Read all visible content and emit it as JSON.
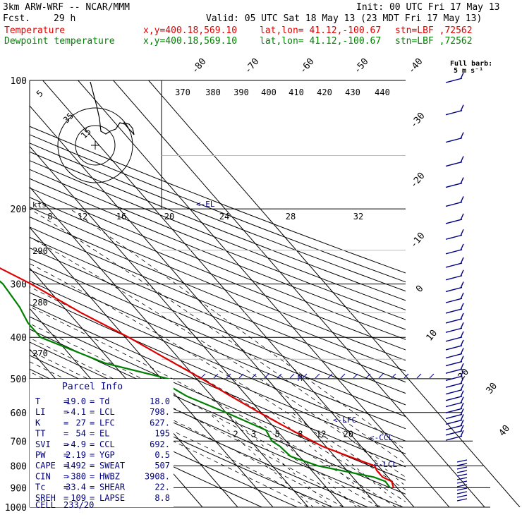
{
  "header": {
    "model": "3km ARW-WRF -- NCAR/MMM",
    "init": "Init: 00 UTC Fri 17 May 13",
    "fcst_label": "Fcst.",
    "fcst_value": "29 h",
    "valid": "Valid: 05 UTC Sat 18 May 13 (23 MDT Fri 17 May 13)",
    "temperature_label": "Temperature",
    "dewpoint_label": "Dewpoint temperature",
    "xy": "x,y=400.18,569.10",
    "latlon": "lat,lon= 41.12,-100.67",
    "station": "stn=LBF ,72562",
    "full_barb_label": "Full barb:",
    "full_barb_value": "5 m s⁻¹"
  },
  "chart_data": {
    "type": "line",
    "diagram": "skew-T log-p",
    "y_axis": {
      "scale": "log",
      "range": [
        1000,
        100
      ],
      "tick_labels": [
        100,
        200,
        300,
        400,
        500,
        600,
        700,
        800,
        900,
        1000
      ]
    },
    "isotherm_labels": [
      -80,
      -70,
      -60,
      -50,
      -40,
      -30,
      -20,
      -10,
      0,
      10,
      20,
      30,
      40
    ],
    "theta_labels_top": [
      370,
      380,
      390,
      400,
      410,
      420,
      430,
      440
    ],
    "theta_labels_left": [
      290,
      280,
      270
    ],
    "mixing_ratio_labels": [
      2,
      3,
      5,
      8,
      12,
      20
    ],
    "hodograph_speed_labels": [
      8,
      12,
      16,
      20,
      24,
      28,
      32
    ],
    "hodograph_unit": "kts",
    "hodograph_ring_labels": [
      5,
      35,
      15
    ],
    "series": [
      {
        "name": "Temperature",
        "color": "#e00000",
        "points": [
          [
            900,
            19.0
          ],
          [
            870,
            20.0
          ],
          [
            850,
            18.5
          ],
          [
            820,
            18.5
          ],
          [
            800,
            19.0
          ],
          [
            760,
            14.0
          ],
          [
            720,
            9.0
          ],
          [
            700,
            7.5
          ],
          [
            650,
            3.5
          ],
          [
            600,
            -0.5
          ],
          [
            550,
            -4.5
          ],
          [
            500,
            -8.5
          ],
          [
            450,
            -13.5
          ],
          [
            400,
            -19.0
          ],
          [
            350,
            -26.5
          ],
          [
            300,
            -33.5
          ],
          [
            250,
            -44.0
          ],
          [
            220,
            -51.5
          ],
          [
            200,
            -56.0
          ],
          [
            180,
            -58.0
          ],
          [
            160,
            -58.0
          ],
          [
            140,
            -57.5
          ],
          [
            130,
            -56.0
          ],
          [
            120,
            -56.0
          ],
          [
            110,
            -58.0
          ],
          [
            100,
            -60.0
          ]
        ]
      },
      {
        "name": "Dewpoint temperature",
        "color": "#008000",
        "points": [
          [
            900,
            18.0
          ],
          [
            870,
            18.2
          ],
          [
            850,
            16.0
          ],
          [
            800,
            3.0
          ],
          [
            760,
            -2.5
          ],
          [
            720,
            -3.0
          ],
          [
            700,
            -4.0
          ],
          [
            660,
            -3.0
          ],
          [
            600,
            -10.0
          ],
          [
            550,
            -17.0
          ],
          [
            520,
            -19.5
          ],
          [
            500,
            -18.0
          ],
          [
            460,
            -32.0
          ],
          [
            400,
            -44.0
          ],
          [
            370,
            -44.0
          ],
          [
            340,
            -42.5
          ],
          [
            300,
            -41.5
          ],
          [
            250,
            -44.0
          ],
          [
            220,
            -53.0
          ],
          [
            200,
            -61.0
          ],
          [
            180,
            -68.0
          ],
          [
            160,
            -75.0
          ],
          [
            140,
            -76.0
          ],
          [
            130,
            -75.0
          ],
          [
            120,
            -76.5
          ],
          [
            110,
            -78.0
          ],
          [
            100,
            -78.0
          ]
        ]
      }
    ],
    "annotations": [
      {
        "label": "<-EL",
        "p": 195
      },
      {
        "label": "<-LFC",
        "p": 627
      },
      {
        "label": "<-CCL",
        "p": 692
      },
      {
        "label": "<-LCL",
        "p": 798
      },
      {
        "label": "M",
        "p": 500
      }
    ]
  },
  "parcel_info": {
    "title": "Parcel Info",
    "rows": [
      {
        "k1": "T",
        "v1": "19.0",
        "k2": "Td",
        "v2": "18.0"
      },
      {
        "k1": "LI",
        "v1": "-4.1",
        "k2": "LCL",
        "v2": "798."
      },
      {
        "k1": "K",
        "v1": "27",
        "k2": "LFC",
        "v2": "627."
      },
      {
        "k1": "TT",
        "v1": "54",
        "k2": "EL",
        "v2": "195"
      },
      {
        "k1": "SVI",
        "v1": "-4.9",
        "k2": "CCL",
        "v2": "692."
      },
      {
        "k1": "PW",
        "v1": "2.19",
        "k2": "YGP",
        "v2": "0.5"
      },
      {
        "k1": "CAPE",
        "v1": "1492",
        "k2": "SWEAT",
        "v2": "507"
      },
      {
        "k1": "CIN",
        "v1": "-380",
        "k2": "HWBZ",
        "v2": "3908."
      },
      {
        "k1": "Tc",
        "v1": "33.4",
        "k2": "SHEAR",
        "v2": "22."
      },
      {
        "k1": "SREH",
        "v1": "109",
        "k2": "LAPSE",
        "v2": "8.8"
      }
    ],
    "cell_label": "CELL",
    "cell_value": "233/20"
  }
}
